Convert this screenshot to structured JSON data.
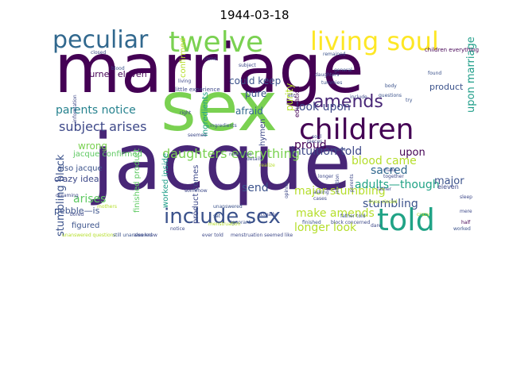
{
  "figure": {
    "title": "1944-03-18"
  },
  "cloud": {
    "palette": [
      "#440154",
      "#482677",
      "#404788",
      "#33638d",
      "#287d8e",
      "#1f968b",
      "#29af7f",
      "#55c667",
      "#95d840",
      "#dce319"
    ],
    "words": [
      {
        "text": "marriage",
        "color": "#440154"
      },
      {
        "text": "jacque",
        "color": "#482677"
      },
      {
        "text": "sex",
        "color": "#7ad151"
      },
      {
        "text": "told",
        "color": "#20a386"
      },
      {
        "text": "children",
        "color": "#440154"
      },
      {
        "text": "twelve",
        "color": "#7ad151"
      },
      {
        "text": "living soul",
        "color": "#fde725"
      },
      {
        "text": "peculiar",
        "color": "#31688e"
      },
      {
        "text": "include sex",
        "color": "#3b528b"
      },
      {
        "text": "amends",
        "color": "#482677"
      },
      {
        "text": "daughters everything",
        "color": "#7ad151"
      },
      {
        "text": "subject arises",
        "color": "#3e4989"
      },
      {
        "text": "parents notice",
        "color": "#26828e"
      },
      {
        "text": "look upon",
        "color": "#3e4989"
      },
      {
        "text": "make amends",
        "color": "#b5de2b"
      },
      {
        "text": "major stumbling",
        "color": "#b5de2b"
      },
      {
        "text": "longer look",
        "color": "#b5de2b"
      },
      {
        "text": "arises",
        "color": "#5ec962"
      },
      {
        "text": "send",
        "color": "#3b528b"
      },
      {
        "text": "intuition told",
        "color": "#3e4989"
      },
      {
        "text": "stumbling",
        "color": "#3b528b"
      },
      {
        "text": "adults—though",
        "color": "#20a386"
      },
      {
        "text": "sacred",
        "color": "#31688e"
      },
      {
        "text": "blood came",
        "color": "#b5de2b"
      },
      {
        "text": "proud",
        "color": "#440154"
      },
      {
        "text": "upon marriage",
        "color": "#1f9e89"
      },
      {
        "text": "stumbling block",
        "color": "#3b528b"
      },
      {
        "text": "wrong",
        "color": "#7ad151"
      },
      {
        "text": "crazy idea",
        "color": "#3e4989"
      },
      {
        "text": "pebble—is",
        "color": "#3b528b"
      },
      {
        "text": "afraid",
        "color": "#31688e"
      },
      {
        "text": "pure",
        "color": "#3b528b"
      },
      {
        "text": "could keep",
        "color": "#3b528b"
      },
      {
        "text": "turned eleven",
        "color": "#440154"
      },
      {
        "text": "major",
        "color": "#3b528b"
      },
      {
        "text": "upon",
        "color": "#440154"
      },
      {
        "text": "purity",
        "color": "#b5de2b"
      },
      {
        "text": "jacque confirmed",
        "color": "#5ec962"
      },
      {
        "text": "also jacque",
        "color": "#3b528b"
      },
      {
        "text": "figured",
        "color": "#3b528b"
      },
      {
        "text": "finished product",
        "color": "#5ec962"
      },
      {
        "text": "product comes",
        "color": "#3e4989"
      },
      {
        "text": "worked inside",
        "color": "#1f9e89"
      },
      {
        "text": "ingredients",
        "color": "#20a386"
      },
      {
        "text": "confirmed",
        "color": "#b5de2b"
      },
      {
        "text": "hymen",
        "color": "#3e4989"
      },
      {
        "text": "product",
        "color": "#3b528b"
      },
      {
        "text": "education",
        "color": "#440154"
      },
      {
        "text": "eleven",
        "color": "#3e4989"
      },
      {
        "text": "unanswered questions",
        "color": "#b5de2b"
      },
      {
        "text": "still unanswered",
        "color": "#3b528b"
      },
      {
        "text": "also knew",
        "color": "#3e4989"
      },
      {
        "text": "ever told",
        "color": "#3e4989"
      },
      {
        "text": "menstruation seemed like",
        "color": "#3e4989"
      },
      {
        "text": "finished",
        "color": "#3b528b"
      },
      {
        "text": "block concerned",
        "color": "#3e4989"
      },
      {
        "text": "father told",
        "color": "#3b528b"
      },
      {
        "text": "crazy",
        "color": "#b5de2b"
      },
      {
        "text": "half",
        "color": "#440154"
      },
      {
        "text": "worked",
        "color": "#3b528b"
      },
      {
        "text": "children everything",
        "color": "#440154"
      },
      {
        "text": "general",
        "color": "#3b528b"
      },
      {
        "text": "body",
        "color": "#3b528b"
      },
      {
        "text": "found",
        "color": "#3b528b"
      },
      {
        "text": "try",
        "color": "#3b528b"
      },
      {
        "text": "nonsense",
        "color": "#3e4989"
      },
      {
        "text": "details",
        "color": "#3e4989"
      },
      {
        "text": "realize",
        "color": "#b5de2b"
      },
      {
        "text": "somehow",
        "color": "#3e4989"
      },
      {
        "text": "ignorant",
        "color": "#3b528b"
      },
      {
        "text": "notice",
        "color": "#3e4989"
      },
      {
        "text": "sat",
        "color": "#3b528b"
      },
      {
        "text": "unanswered",
        "color": "#3b528b"
      },
      {
        "text": "dreaming",
        "color": "#3e4989"
      },
      {
        "text": "bored",
        "color": "#3e4989"
      },
      {
        "text": "information",
        "color": "#3e4989"
      },
      {
        "text": "blood",
        "color": "#3b528b"
      },
      {
        "text": "little experience",
        "color": "#3e4989"
      },
      {
        "text": "tummies",
        "color": "#3b528b"
      },
      {
        "text": "daughters",
        "color": "#3e4989"
      },
      {
        "text": "remained",
        "color": "#3b528b"
      },
      {
        "text": "closed",
        "color": "#3e4989"
      },
      {
        "text": "living",
        "color": "#3e4989"
      },
      {
        "text": "come",
        "color": "#3e4989"
      },
      {
        "text": "mothers",
        "color": "#b5de2b"
      },
      {
        "text": "asking",
        "color": "#3e4989"
      },
      {
        "text": "cases",
        "color": "#3e4989"
      },
      {
        "text": "longer",
        "color": "#3e4989"
      },
      {
        "text": "parents",
        "color": "#3e4989"
      },
      {
        "text": "opinion",
        "color": "#3e4989"
      },
      {
        "text": "soul",
        "color": "#3e4989"
      },
      {
        "text": "intuition",
        "color": "#3e4989"
      },
      {
        "text": "pieces",
        "color": "#3e4989"
      },
      {
        "text": "etc.",
        "color": "#3e4989"
      },
      {
        "text": "include",
        "color": "#3e4989"
      },
      {
        "text": "questions",
        "color": "#3b528b"
      },
      {
        "text": "eyes closed",
        "color": "#b5de2b"
      },
      {
        "text": "father",
        "color": "#3e4989"
      },
      {
        "text": "together",
        "color": "#3e4989"
      },
      {
        "text": "make",
        "color": "#3e4989"
      },
      {
        "text": "ingredients",
        "color": "#3b528b"
      },
      {
        "text": "menstruation",
        "color": "#b5de2b"
      },
      {
        "text": "right",
        "color": "#3e4989"
      },
      {
        "text": "seemed",
        "color": "#3e4989"
      },
      {
        "text": "subject",
        "color": "#3e4989"
      },
      {
        "text": "mere",
        "color": "#3e4989"
      },
      {
        "text": "actually",
        "color": "#3e4989"
      },
      {
        "text": "dare",
        "color": "#3e4989"
      },
      {
        "text": "sleep",
        "color": "#3e4989"
      },
      {
        "text": "gave",
        "color": "#3e4989"
      }
    ]
  }
}
